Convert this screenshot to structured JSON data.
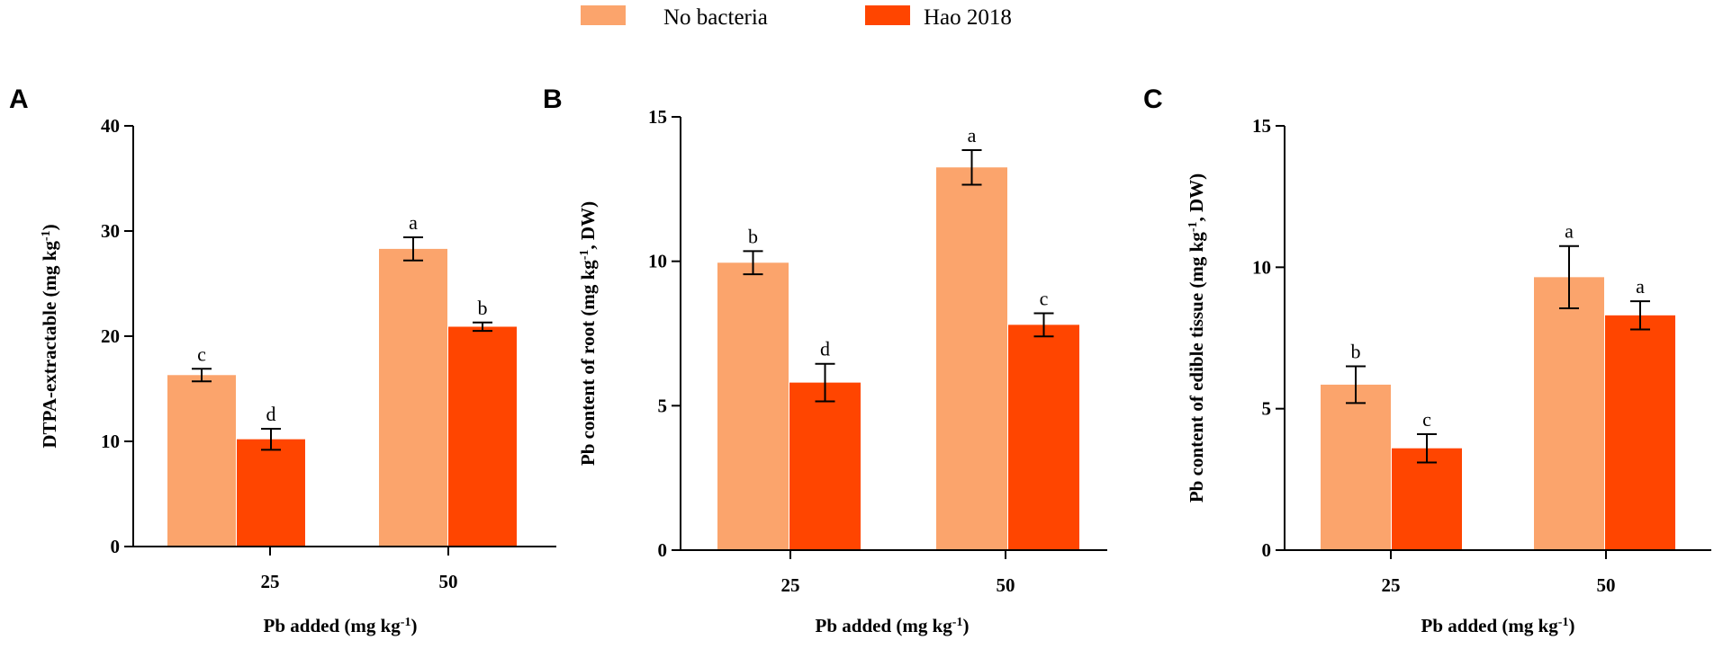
{
  "legend": [
    {
      "label": "No bacteria",
      "color": "#FBA46C"
    },
    {
      "label": "Hao 2018",
      "color": "#FF4500"
    }
  ],
  "chart_data": [
    {
      "type": "bar",
      "panel": "A",
      "categories": [
        "25",
        "50"
      ],
      "series": [
        {
          "name": "No bacteria",
          "values": [
            16.3,
            28.3
          ],
          "errors": [
            0.6,
            1.1
          ],
          "labels": [
            "c",
            "a"
          ]
        },
        {
          "name": "Hao 2018",
          "values": [
            10.2,
            20.9
          ],
          "errors": [
            1.0,
            0.4
          ],
          "labels": [
            "d",
            "b"
          ]
        }
      ],
      "yticks": [
        "0",
        "10",
        "20",
        "30",
        "40"
      ],
      "ylim": [
        0,
        40
      ],
      "xlabel": {
        "main": "Pb added (mg kg",
        "sup": "-1",
        "tail": ")"
      },
      "ylabel": {
        "main": "DTPA-extractable (mg kg",
        "sup": "-1",
        "tail": ")"
      }
    },
    {
      "type": "bar",
      "panel": "B",
      "categories": [
        "25",
        "50"
      ],
      "series": [
        {
          "name": "No bacteria",
          "values": [
            9.95,
            13.25
          ],
          "errors": [
            0.4,
            0.6
          ],
          "labels": [
            "b",
            "a"
          ]
        },
        {
          "name": "Hao 2018",
          "values": [
            5.8,
            7.8
          ],
          "errors": [
            0.65,
            0.4
          ],
          "labels": [
            "d",
            "c"
          ]
        }
      ],
      "yticks": [
        "0",
        "5",
        "10",
        "15"
      ],
      "ylim": [
        0,
        15
      ],
      "xlabel": {
        "main": "Pb added (mg kg",
        "sup": "-1",
        "tail": ")"
      },
      "ylabel": {
        "main": "Pb content of root (mg kg",
        "sup": "-1",
        "tail": ", DW)"
      }
    },
    {
      "type": "bar",
      "panel": "C",
      "categories": [
        "25",
        "50"
      ],
      "series": [
        {
          "name": "No bacteria",
          "values": [
            5.85,
            9.65
          ],
          "errors": [
            0.65,
            1.1
          ],
          "labels": [
            "b",
            "a"
          ]
        },
        {
          "name": "Hao 2018",
          "values": [
            3.6,
            8.3
          ],
          "errors": [
            0.5,
            0.5
          ],
          "labels": [
            "c",
            "a"
          ]
        }
      ],
      "yticks": [
        "0",
        "5",
        "10",
        "15"
      ],
      "ylim": [
        0,
        15
      ],
      "xlabel": {
        "main": "Pb added (mg kg",
        "sup": "-1",
        "tail": ")"
      },
      "ylabel": {
        "main": "Pb content of edible tissue (mg kg",
        "sup": "-1",
        "tail": ", DW)"
      }
    }
  ]
}
